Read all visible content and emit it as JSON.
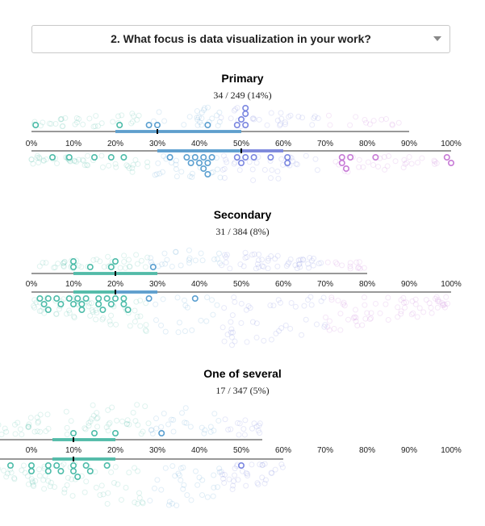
{
  "question": {
    "label": "2. What focus is data visualization in your work?",
    "caret_icon": "chevron-down-icon"
  },
  "colors": {
    "low": "#4dbca9",
    "mid": "#5a9fd0",
    "high": "#7a86e0",
    "top": "#c77ad6",
    "axis": "#333333"
  },
  "chart_data": [
    {
      "type": "scatter",
      "title": "Primary",
      "subtitle": "34 / 249 (14%)",
      "ticks": [
        "0%",
        "10%",
        "20%",
        "30%",
        "40%",
        "50%",
        "60%",
        "70%",
        "80%",
        "90%",
        "100%"
      ],
      "xlim": [
        0,
        100
      ],
      "upper": {
        "range": [
          0,
          90
        ],
        "box": [
          20,
          50
        ],
        "median": 30,
        "points": [
          1,
          21,
          28,
          30,
          42,
          49,
          50,
          51,
          51,
          51
        ]
      },
      "lower": {
        "range": [
          0,
          100
        ],
        "box": [
          30,
          60
        ],
        "median": 50,
        "points": [
          5,
          9,
          15,
          19,
          22,
          33,
          37,
          38,
          39,
          40,
          41,
          41,
          42,
          42,
          43,
          49,
          50,
          51,
          53,
          57,
          61,
          61,
          74,
          74,
          75,
          76,
          82,
          99,
          100
        ]
      }
    },
    {
      "type": "scatter",
      "title": "Secondary",
      "subtitle": "31 / 384 (8%)",
      "ticks": [
        "0%",
        "10%",
        "20%",
        "30%",
        "40%",
        "50%",
        "60%",
        "70%",
        "80%",
        "90%",
        "100%"
      ],
      "xlim": [
        0,
        100
      ],
      "upper": {
        "range": [
          0,
          80
        ],
        "box": [
          10,
          30
        ],
        "median": 20,
        "points": [
          10,
          10,
          14,
          19,
          20,
          29
        ]
      },
      "lower": {
        "range": [
          0,
          100
        ],
        "box": [
          10,
          30
        ],
        "median": 20,
        "points": [
          2,
          3,
          4,
          4,
          6,
          7,
          9,
          10,
          11,
          12,
          12,
          13,
          16,
          16,
          17,
          18,
          19,
          20,
          22,
          22,
          23,
          28,
          39
        ]
      }
    },
    {
      "type": "scatter",
      "title": "One of several",
      "subtitle": "17 / 347 (5%)",
      "ticks": [
        "0%",
        "10%",
        "20%",
        "30%",
        "40%",
        "50%",
        "60%",
        "70%",
        "80%",
        "90%",
        "100%"
      ],
      "xlim": [
        0,
        100
      ],
      "upper": {
        "range": [
          -8,
          55
        ],
        "box": [
          5,
          20
        ],
        "median": 10,
        "points": [
          10,
          15,
          20,
          31
        ]
      },
      "lower": {
        "range": [
          -8,
          60
        ],
        "box": [
          5,
          20
        ],
        "median": 10,
        "points": [
          -5,
          0,
          0,
          4,
          4,
          6,
          7,
          10,
          10,
          11,
          13,
          14,
          18,
          50
        ]
      }
    }
  ]
}
